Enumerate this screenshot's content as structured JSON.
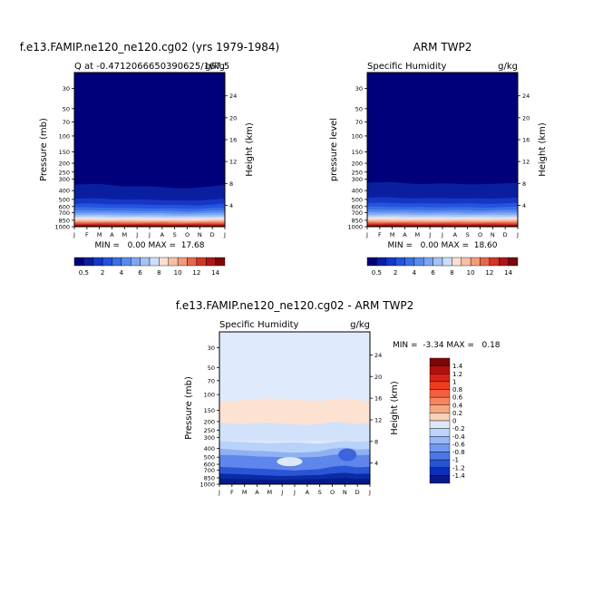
{
  "chart_data": [
    {
      "type": "heatmap",
      "title": "f.e13.FAMIP.ne120_ne120.cg02 (yrs 1979-1984)",
      "subtitle_left": "Q at -0.4712066650390625/167.5",
      "subtitle_right": "g/kg",
      "ylabel": "Pressure (mb)",
      "ylabel_right": "Height (km)",
      "x_ticks": [
        "J",
        "F",
        "M",
        "A",
        "M",
        "J",
        "J",
        "A",
        "S",
        "O",
        "N",
        "D",
        "J"
      ],
      "y_ticks": [
        "30",
        "50",
        "70",
        "100",
        "150",
        "200",
        "250",
        "300",
        "400",
        "500",
        "600",
        "700",
        "850",
        "1000"
      ],
      "y_ticks_right": [
        "24",
        "20",
        "16",
        "12",
        "8",
        "4"
      ],
      "stats": "MIN =   0.00 MAX =  17.68",
      "colorbar_labels": [
        "0.5",
        "2",
        "4",
        "6",
        "8",
        "10",
        "12",
        "14"
      ],
      "moist_top_mb": [
        340,
        338,
        342,
        350,
        356,
        360,
        362,
        365,
        372,
        380,
        372,
        355,
        342
      ],
      "min": 0.0,
      "max": 17.68
    },
    {
      "type": "heatmap",
      "title": "ARM TWP2",
      "subtitle_left": "Specific Humidity",
      "subtitle_right": "g/kg",
      "ylabel": "pressure level",
      "ylabel_right": "Height (km)",
      "x_ticks": [
        "J",
        "F",
        "M",
        "A",
        "M",
        "J",
        "J",
        "A",
        "S",
        "O",
        "N",
        "D",
        "J"
      ],
      "y_ticks": [
        "30",
        "50",
        "70",
        "100",
        "150",
        "200",
        "250",
        "300",
        "400",
        "500",
        "600",
        "700",
        "850",
        "1000"
      ],
      "y_ticks_right": [
        "24",
        "20",
        "16",
        "12",
        "8",
        "4"
      ],
      "stats": "MIN =   0.00 MAX =  18.60",
      "colorbar_labels": [
        "0.5",
        "2",
        "4",
        "6",
        "8",
        "10",
        "12",
        "14"
      ],
      "moist_top_mb": [
        325,
        322,
        326,
        332,
        335,
        338,
        336,
        335,
        338,
        344,
        340,
        330,
        326
      ],
      "min": 0.0,
      "max": 18.6
    },
    {
      "type": "heatmap",
      "title": "f.e13.FAMIP.ne120_ne120.cg02 - ARM TWP2",
      "subtitle_left": "Specific Humidity",
      "subtitle_right": "g/kg",
      "ylabel": "Pressure (mb)",
      "ylabel_right": "Height (km)",
      "x_ticks": [
        "J",
        "F",
        "M",
        "A",
        "M",
        "J",
        "J",
        "A",
        "S",
        "O",
        "N",
        "D",
        "J"
      ],
      "y_ticks": [
        "30",
        "50",
        "70",
        "100",
        "150",
        "200",
        "250",
        "300",
        "400",
        "500",
        "600",
        "700",
        "850",
        "1000"
      ],
      "y_ticks_right": [
        "24",
        "20",
        "16",
        "12",
        "8",
        "4"
      ],
      "stats": "MIN =  -3.34 MAX =   0.18",
      "colorbar_labels": [
        "1.4",
        "1.2",
        "1",
        "0.8",
        "0.6",
        "0.4",
        "0.2",
        "0",
        "-0.2",
        "-0.4",
        "-0.6",
        "-0.8",
        "-1",
        "-1.2",
        "-1.4"
      ],
      "min": -3.34,
      "max": 0.18
    }
  ],
  "colors": {
    "seq_palette": [
      "#00007a",
      "#0a1fa0",
      "#1637c6",
      "#2553dd",
      "#3a6fe6",
      "#5a8bec",
      "#7ea6f1",
      "#a5c2f6",
      "#ccdefa",
      "#fbe0d2",
      "#f7bfa5",
      "#f29a7a",
      "#e7674c",
      "#d33526",
      "#b0151a",
      "#7d0808"
    ],
    "diff_palette": [
      "#7d0606",
      "#b01010",
      "#d82216",
      "#f03c1c",
      "#f4603f",
      "#f6845f",
      "#f9a783",
      "#fcd1ba",
      "#dde9fb",
      "#bcd3fa",
      "#97b8f5",
      "#729af0",
      "#4b78e6",
      "#2554d6",
      "#0a2fb8",
      "#071a88"
    ]
  }
}
